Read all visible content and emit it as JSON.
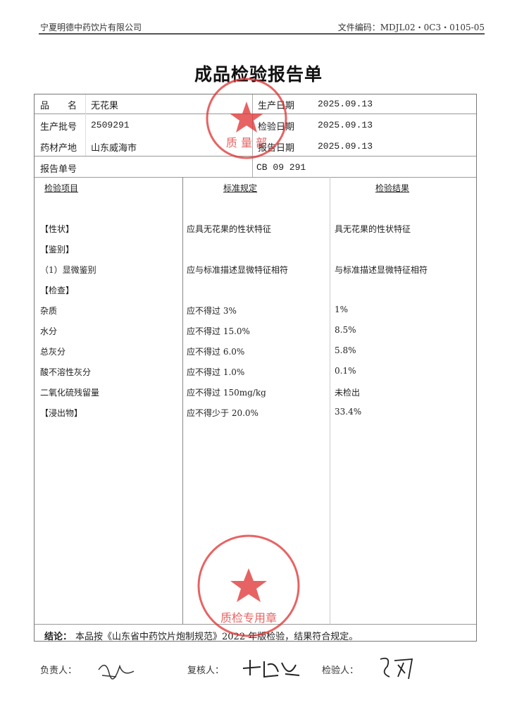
{
  "header": {
    "company": "宁夏明德中药饮片有限公司",
    "doc_code": "文件编码：MDJL02・0C3・0105-05"
  },
  "title": "成品检验报告单",
  "info": {
    "name_label": "品　　名",
    "name": "无花果",
    "batch_label": "生产批号",
    "batch": "2509291",
    "origin_label": "药材产地",
    "origin": "山东威海市",
    "prod_date_label": "生产日期",
    "prod_date": "2025.09.13",
    "test_date_label": "检验日期",
    "test_date": "2025.09.13",
    "report_date_label": "报告日期",
    "report_date": "2025.09.13",
    "report_no_label": "报告单号",
    "report_no": "CB 09 291"
  },
  "columns": [
    "检验项目",
    "标准规定",
    "检验结果"
  ],
  "rows": [
    {
      "item": "【性状】",
      "standard": "应具无花果的性状特征",
      "result": "具无花果的性状特征"
    },
    {
      "item": "【鉴别】",
      "standard": "",
      "result": ""
    },
    {
      "item": "（1）显微鉴别",
      "standard": "应与标准描述显微特征相符",
      "result": "与标准描述显微特征相符"
    },
    {
      "item": "【检查】",
      "standard": "",
      "result": ""
    },
    {
      "item": "杂质",
      "standard": "应不得过 3%",
      "result": "1%"
    },
    {
      "item": "水分",
      "standard": "应不得过 15.0%",
      "result": "8.5%"
    },
    {
      "item": "总灰分",
      "standard": "应不得过 6.0%",
      "result": "5.8%"
    },
    {
      "item": "酸不溶性灰分",
      "standard": "应不得过 1.0%",
      "result": "0.1%"
    },
    {
      "item": "二氧化硫残留量",
      "standard": "应不得过 150mg/kg",
      "result": "未检出"
    },
    {
      "item": "【浸出物】",
      "standard": "应不得少于 20.0%",
      "result": "33.4%"
    }
  ],
  "conclusion": {
    "label": "结论：",
    "text": "本品按《山东省中药饮片炮制规范》2022 年版检验，结果符合规定。"
  },
  "signatures": {
    "responsible_label": "负责人：",
    "reviewer_label": "复核人：",
    "inspector_label": "检验人："
  },
  "stamps": {
    "top": "宁夏明德中药饮片有限公司 质量部",
    "bottom": "宁夏明德中药饮片有限公司 质检专用章",
    "color": "#e03030"
  }
}
